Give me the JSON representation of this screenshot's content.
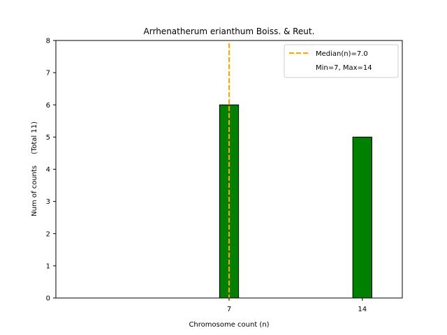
{
  "chart_data": {
    "type": "bar",
    "title": "Arrhenatherum erianthum Boiss. & Reut.",
    "xlabel": "Chromosome count (n)",
    "ylabel": "Num of counts",
    "ylabel_total": "(Total 11)",
    "xlim": [
      -2.1,
      16.1
    ],
    "ylim": [
      0,
      8
    ],
    "x_ticks": [
      7,
      14
    ],
    "y_ticks": [
      0,
      1,
      2,
      3,
      4,
      5,
      6,
      7,
      8
    ],
    "bar_width": 1,
    "bars": [
      {
        "x": 7,
        "value": 6
      },
      {
        "x": 14,
        "value": 5
      }
    ],
    "bar_color": "#008000",
    "bar_edge_color": "#000000",
    "median": 7.0,
    "median_color": "#ffa500",
    "legend": {
      "placement": "top-right",
      "median_label": "Median(n)=7.0",
      "minmax_label": "Min=7, Max=14"
    }
  }
}
